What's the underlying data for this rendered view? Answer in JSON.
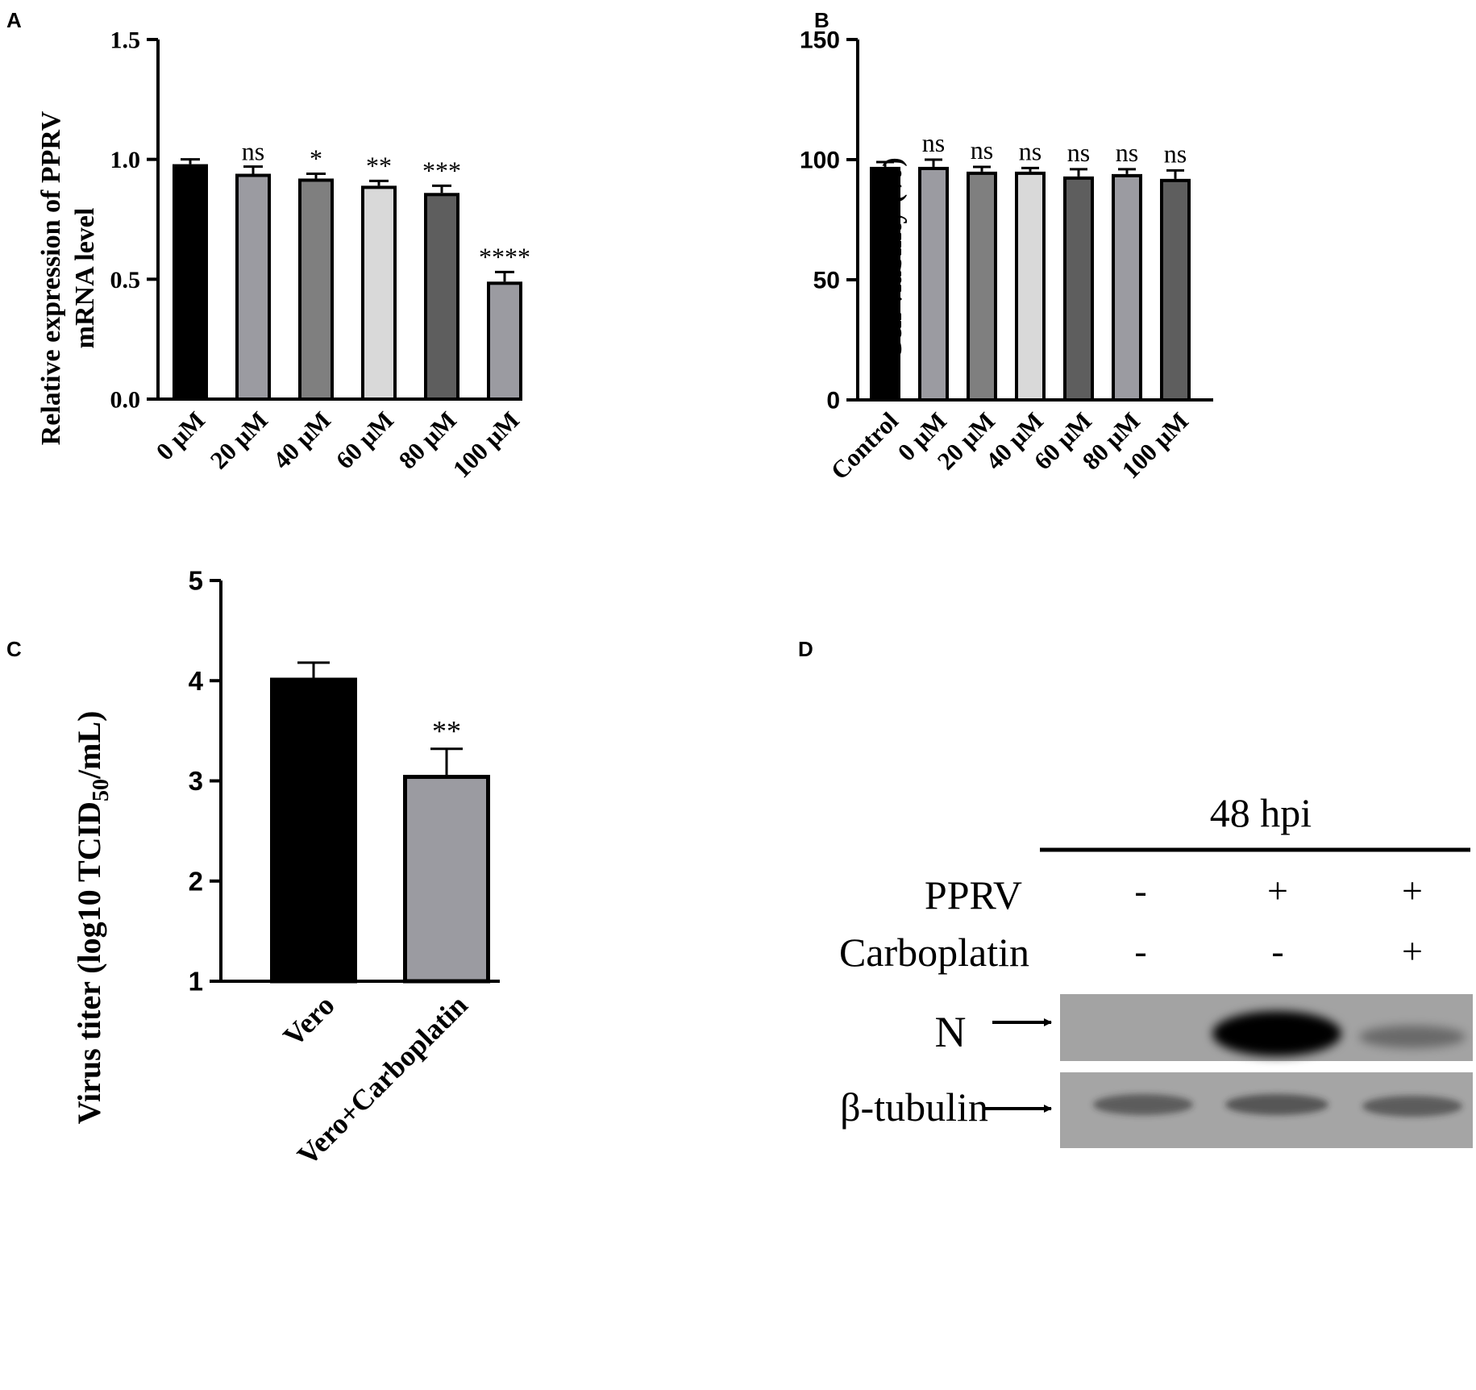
{
  "panels": {
    "A": "A",
    "B": "B",
    "C": "C",
    "D": "D"
  },
  "chart_data": [
    {
      "panel": "A",
      "type": "bar",
      "categories": [
        "0 μM",
        "20 μM",
        "40 μM",
        "60 μM",
        "80 μM",
        "100 μM"
      ],
      "values": [
        0.98,
        0.94,
        0.92,
        0.89,
        0.86,
        0.49
      ],
      "errors": [
        0.02,
        0.03,
        0.02,
        0.02,
        0.03,
        0.04
      ],
      "significance": [
        "",
        "ns",
        "*",
        "**",
        "***",
        "****"
      ],
      "colors": [
        "#000000",
        "#9b9ba1",
        "#7f7f7f",
        "#d9d9d9",
        "#5e5e5e",
        "#9b9ba1"
      ],
      "ylabel_lines": [
        "Relative expression of PPRV",
        "mRNA level"
      ],
      "ylim": [
        0,
        1.5
      ],
      "yticks": [
        0.0,
        0.5,
        1.0,
        1.5
      ],
      "ytick_labels": [
        "0.0",
        "0.5",
        "1.0",
        "1.5"
      ]
    },
    {
      "panel": "B",
      "type": "bar",
      "categories": [
        "Control",
        "0 μM",
        "20 μM",
        "40 μM",
        "60 μM",
        "80 μM",
        "100 μM"
      ],
      "values": [
        97,
        97,
        95,
        95,
        93,
        94,
        92
      ],
      "errors": [
        2,
        3,
        2,
        1.5,
        3,
        2,
        3.5
      ],
      "significance": [
        "",
        "ns",
        "ns",
        "ns",
        "ns",
        "ns",
        "ns"
      ],
      "colors": [
        "#000000",
        "#9b9ba1",
        "#7f7f7f",
        "#d9d9d9",
        "#5e5e5e",
        "#9b9ba1",
        "#5e5e5e"
      ],
      "ylabel": "Cell viability (%)",
      "ylim": [
        0,
        150
      ],
      "yticks": [
        0,
        50,
        100,
        150
      ],
      "ytick_labels": [
        "0",
        "50",
        "100",
        "150"
      ]
    },
    {
      "panel": "C",
      "type": "bar",
      "categories": [
        "Vero",
        "Vero+Carboplatin"
      ],
      "values": [
        4.03,
        3.06
      ],
      "errors": [
        0.15,
        0.26
      ],
      "significance": [
        "",
        "**"
      ],
      "colors": [
        "#000000",
        "#9b9ba1"
      ],
      "ylabel_parts": [
        "Virus titer (log10 TCID",
        "50",
        "/mL)"
      ],
      "ylim": [
        1,
        5
      ],
      "yticks": [
        1,
        2,
        3,
        4,
        5
      ],
      "ytick_labels": [
        "1",
        "2",
        "3",
        "4",
        "5"
      ]
    }
  ],
  "blot": {
    "timepoint": "48 hpi",
    "rows": [
      {
        "label": "PPRV",
        "signs": [
          "-",
          "+",
          "+"
        ]
      },
      {
        "label": "Carboplatin",
        "signs": [
          "-",
          "-",
          "+"
        ]
      }
    ],
    "bands": [
      {
        "label": "N",
        "intensity": [
          0,
          1.0,
          0.35
        ]
      },
      {
        "label": "β-tubulin",
        "intensity": [
          0.55,
          0.6,
          0.55
        ]
      }
    ]
  }
}
